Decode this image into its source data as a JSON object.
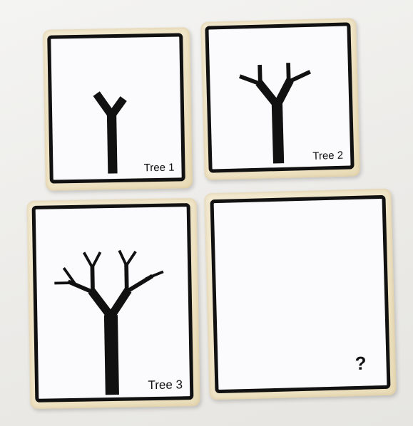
{
  "cards": [
    {
      "label": "Tree 1"
    },
    {
      "label": "Tree 2"
    },
    {
      "label": "Tree 3"
    },
    {
      "label": "?"
    }
  ],
  "colors": {
    "ink": "#111111",
    "card": "#fbfbfd",
    "board": "#efe4c6"
  }
}
